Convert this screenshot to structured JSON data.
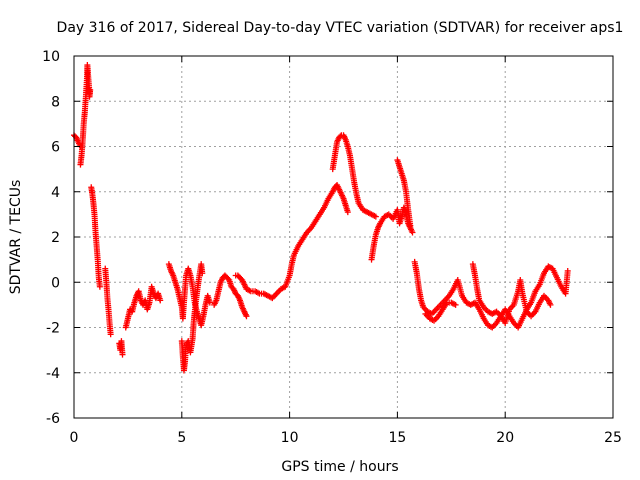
{
  "chart_data": {
    "type": "scatter",
    "title": "Day 316 of 2017, Sidereal Day-to-day VTEC variation (SDTVAR) for receiver aps1",
    "xlabel": "GPS time / hours",
    "ylabel": "SDTVAR / TECUs",
    "xlim": [
      0,
      25
    ],
    "ylim": [
      -6,
      10
    ],
    "xticks": [
      "0",
      "5",
      "10",
      "15",
      "20",
      "25"
    ],
    "yticks": [
      "-6",
      "-4",
      "-2",
      "0",
      "2",
      "4",
      "6",
      "8",
      "10"
    ],
    "grid": true,
    "marker": "+",
    "color": "#ff0000",
    "segments": [
      [
        [
          0.0,
          6.5
        ],
        [
          0.1,
          6.4
        ],
        [
          0.2,
          6.2
        ],
        [
          0.3,
          6.0
        ]
      ],
      [
        [
          0.3,
          5.2
        ],
        [
          0.35,
          5.6
        ],
        [
          0.4,
          6.2
        ],
        [
          0.45,
          7.0
        ],
        [
          0.5,
          7.5
        ],
        [
          0.55,
          8.2
        ],
        [
          0.6,
          9.0
        ],
        [
          0.62,
          9.6
        ],
        [
          0.65,
          9.2
        ],
        [
          0.7,
          8.6
        ],
        [
          0.72,
          8.2
        ],
        [
          0.75,
          8.5
        ]
      ],
      [
        [
          0.8,
          4.2
        ],
        [
          0.85,
          3.9
        ],
        [
          0.9,
          3.5
        ],
        [
          0.95,
          3.0
        ],
        [
          1.0,
          2.2
        ],
        [
          1.05,
          1.6
        ],
        [
          1.1,
          1.0
        ],
        [
          1.15,
          0.2
        ],
        [
          1.2,
          -0.2
        ]
      ],
      [
        [
          1.45,
          0.6
        ],
        [
          1.5,
          0.0
        ],
        [
          1.55,
          -0.7
        ],
        [
          1.6,
          -1.2
        ],
        [
          1.65,
          -1.8
        ],
        [
          1.7,
          -2.3
        ]
      ],
      [
        [
          2.1,
          -2.7
        ],
        [
          2.15,
          -3.0
        ],
        [
          2.2,
          -2.6
        ],
        [
          2.25,
          -3.2
        ]
      ],
      [
        [
          2.4,
          -2.0
        ],
        [
          2.5,
          -1.6
        ],
        [
          2.6,
          -1.2
        ],
        [
          2.7,
          -1.3
        ],
        [
          2.8,
          -0.9
        ],
        [
          2.9,
          -0.6
        ],
        [
          3.0,
          -0.4
        ],
        [
          3.1,
          -0.8
        ],
        [
          3.2,
          -1.0
        ],
        [
          3.3,
          -0.8
        ],
        [
          3.4,
          -1.2
        ],
        [
          3.5,
          -0.9
        ],
        [
          3.6,
          -0.2
        ],
        [
          3.7,
          -0.5
        ],
        [
          3.8,
          -0.7
        ],
        [
          3.9,
          -0.5
        ],
        [
          4.0,
          -0.8
        ]
      ],
      [
        [
          4.4,
          0.8
        ],
        [
          4.5,
          0.5
        ],
        [
          4.6,
          0.3
        ],
        [
          4.7,
          0.0
        ],
        [
          4.8,
          -0.3
        ],
        [
          4.9,
          -0.7
        ],
        [
          5.0,
          -1.1
        ],
        [
          5.05,
          -1.6
        ],
        [
          5.1,
          -0.9
        ],
        [
          5.15,
          -0.3
        ],
        [
          5.2,
          0.3
        ],
        [
          5.3,
          0.6
        ],
        [
          5.4,
          0.3
        ],
        [
          5.5,
          -0.2
        ],
        [
          5.6,
          -0.9
        ],
        [
          5.7,
          -1.3
        ],
        [
          5.8,
          -1.6
        ],
        [
          5.9,
          -1.9
        ],
        [
          6.0,
          -1.5
        ],
        [
          6.1,
          -1.0
        ],
        [
          6.2,
          -0.6
        ],
        [
          6.3,
          -0.9
        ]
      ],
      [
        [
          5.0,
          -2.6
        ],
        [
          5.05,
          -3.3
        ],
        [
          5.1,
          -3.9
        ],
        [
          5.15,
          -3.5
        ],
        [
          5.2,
          -2.8
        ],
        [
          5.3,
          -2.6
        ],
        [
          5.4,
          -3.1
        ],
        [
          5.5,
          -2.5
        ],
        [
          5.55,
          -1.8
        ],
        [
          5.6,
          -1.3
        ],
        [
          5.7,
          -0.5
        ],
        [
          5.8,
          0.2
        ],
        [
          5.9,
          0.8
        ],
        [
          5.95,
          0.4
        ]
      ],
      [
        [
          6.5,
          -1.0
        ],
        [
          6.6,
          -0.8
        ],
        [
          6.7,
          -0.4
        ],
        [
          6.8,
          0.0
        ],
        [
          6.9,
          0.2
        ],
        [
          7.0,
          0.3
        ],
        [
          7.1,
          0.2
        ],
        [
          7.2,
          0.1
        ],
        [
          7.3,
          -0.2
        ],
        [
          7.4,
          -0.3
        ],
        [
          7.5,
          -0.5
        ],
        [
          7.6,
          -0.6
        ],
        [
          7.7,
          -0.8
        ],
        [
          7.8,
          -1.1
        ],
        [
          7.9,
          -1.3
        ],
        [
          8.0,
          -1.5
        ]
      ],
      [
        [
          7.5,
          0.3
        ],
        [
          7.6,
          0.3
        ],
        [
          7.7,
          0.2
        ],
        [
          7.8,
          0.1
        ],
        [
          7.9,
          -0.1
        ],
        [
          8.0,
          -0.3
        ],
        [
          8.2,
          -0.4
        ],
        [
          8.4,
          -0.4
        ],
        [
          8.6,
          -0.5
        ],
        [
          8.8,
          -0.5
        ],
        [
          9.0,
          -0.6
        ],
        [
          9.2,
          -0.7
        ],
        [
          9.4,
          -0.5
        ],
        [
          9.6,
          -0.3
        ],
        [
          9.8,
          -0.2
        ],
        [
          10.0,
          0.3
        ],
        [
          10.1,
          0.8
        ],
        [
          10.2,
          1.2
        ],
        [
          10.4,
          1.6
        ],
        [
          10.6,
          1.9
        ],
        [
          10.8,
          2.2
        ],
        [
          11.0,
          2.4
        ],
        [
          11.2,
          2.7
        ],
        [
          11.4,
          3.0
        ],
        [
          11.6,
          3.3
        ],
        [
          11.8,
          3.7
        ],
        [
          12.0,
          4.0
        ],
        [
          12.1,
          4.2
        ],
        [
          12.2,
          4.3
        ],
        [
          12.3,
          4.1
        ],
        [
          12.4,
          3.9
        ],
        [
          12.5,
          3.7
        ],
        [
          12.6,
          3.4
        ],
        [
          12.7,
          3.1
        ]
      ],
      [
        [
          12.0,
          5.0
        ],
        [
          12.1,
          5.6
        ],
        [
          12.2,
          6.2
        ],
        [
          12.3,
          6.4
        ],
        [
          12.4,
          6.5
        ],
        [
          12.5,
          6.5
        ],
        [
          12.6,
          6.3
        ],
        [
          12.7,
          6.0
        ],
        [
          12.8,
          5.6
        ],
        [
          12.9,
          5.0
        ],
        [
          13.0,
          4.4
        ],
        [
          13.1,
          3.9
        ],
        [
          13.2,
          3.5
        ],
        [
          13.4,
          3.2
        ],
        [
          13.6,
          3.1
        ],
        [
          13.8,
          3.0
        ],
        [
          14.0,
          2.9
        ]
      ],
      [
        [
          13.8,
          1.0
        ],
        [
          13.9,
          1.6
        ],
        [
          14.0,
          2.1
        ],
        [
          14.1,
          2.4
        ],
        [
          14.2,
          2.6
        ],
        [
          14.4,
          2.9
        ],
        [
          14.6,
          3.0
        ],
        [
          14.8,
          2.8
        ],
        [
          15.0,
          3.2
        ],
        [
          15.1,
          2.6
        ],
        [
          15.2,
          2.9
        ],
        [
          15.3,
          3.3
        ],
        [
          15.4,
          3.0
        ],
        [
          15.5,
          2.6
        ],
        [
          15.6,
          2.4
        ],
        [
          15.7,
          2.2
        ]
      ],
      [
        [
          15.0,
          5.4
        ],
        [
          15.1,
          5.1
        ],
        [
          15.2,
          4.8
        ],
        [
          15.3,
          4.5
        ],
        [
          15.4,
          4.0
        ],
        [
          15.5,
          3.2
        ],
        [
          15.6,
          2.5
        ]
      ],
      [
        [
          15.8,
          0.9
        ],
        [
          15.9,
          0.4
        ],
        [
          16.0,
          -0.3
        ],
        [
          16.1,
          -0.8
        ],
        [
          16.2,
          -1.1
        ],
        [
          16.4,
          -1.3
        ],
        [
          16.6,
          -1.4
        ],
        [
          16.8,
          -1.2
        ],
        [
          17.0,
          -1.0
        ],
        [
          17.2,
          -0.8
        ],
        [
          17.4,
          -0.6
        ],
        [
          17.6,
          -0.3
        ],
        [
          17.8,
          0.1
        ],
        [
          18.0,
          -0.6
        ],
        [
          18.2,
          -0.9
        ],
        [
          18.4,
          -1.0
        ],
        [
          18.6,
          -0.9
        ],
        [
          18.8,
          -1.2
        ],
        [
          19.0,
          -1.6
        ],
        [
          19.2,
          -1.9
        ],
        [
          19.4,
          -2.0
        ],
        [
          19.6,
          -1.8
        ],
        [
          19.8,
          -1.5
        ],
        [
          20.0,
          -1.2
        ],
        [
          20.2,
          -1.5
        ],
        [
          20.4,
          -1.8
        ],
        [
          20.6,
          -2.0
        ],
        [
          20.8,
          -1.6
        ],
        [
          21.0,
          -1.2
        ],
        [
          21.2,
          -0.9
        ],
        [
          21.4,
          -0.4
        ],
        [
          21.6,
          -0.1
        ],
        [
          21.8,
          0.4
        ],
        [
          22.0,
          0.7
        ],
        [
          22.2,
          0.6
        ],
        [
          22.4,
          0.2
        ],
        [
          22.6,
          -0.2
        ],
        [
          22.8,
          -0.5
        ],
        [
          22.9,
          0.5
        ]
      ],
      [
        [
          18.5,
          0.8
        ],
        [
          18.6,
          0.3
        ],
        [
          18.7,
          -0.3
        ],
        [
          18.8,
          -0.8
        ],
        [
          19.0,
          -1.1
        ],
        [
          19.2,
          -1.3
        ],
        [
          19.4,
          -1.4
        ],
        [
          19.6,
          -1.3
        ],
        [
          19.8,
          -1.5
        ],
        [
          20.0,
          -1.8
        ],
        [
          20.2,
          -1.2
        ],
        [
          20.4,
          -1.0
        ],
        [
          20.6,
          -0.4
        ],
        [
          20.7,
          0.1
        ],
        [
          20.8,
          -0.5
        ],
        [
          21.0,
          -1.3
        ],
        [
          21.2,
          -1.5
        ],
        [
          21.4,
          -1.3
        ],
        [
          21.6,
          -0.9
        ],
        [
          21.8,
          -0.6
        ],
        [
          22.0,
          -0.8
        ],
        [
          22.1,
          -1.0
        ]
      ],
      [
        [
          16.3,
          -1.4
        ],
        [
          16.5,
          -1.6
        ],
        [
          16.7,
          -1.7
        ],
        [
          16.9,
          -1.5
        ],
        [
          17.1,
          -1.2
        ],
        [
          17.3,
          -0.9
        ],
        [
          17.5,
          -0.9
        ],
        [
          17.7,
          -1.0
        ]
      ]
    ]
  }
}
